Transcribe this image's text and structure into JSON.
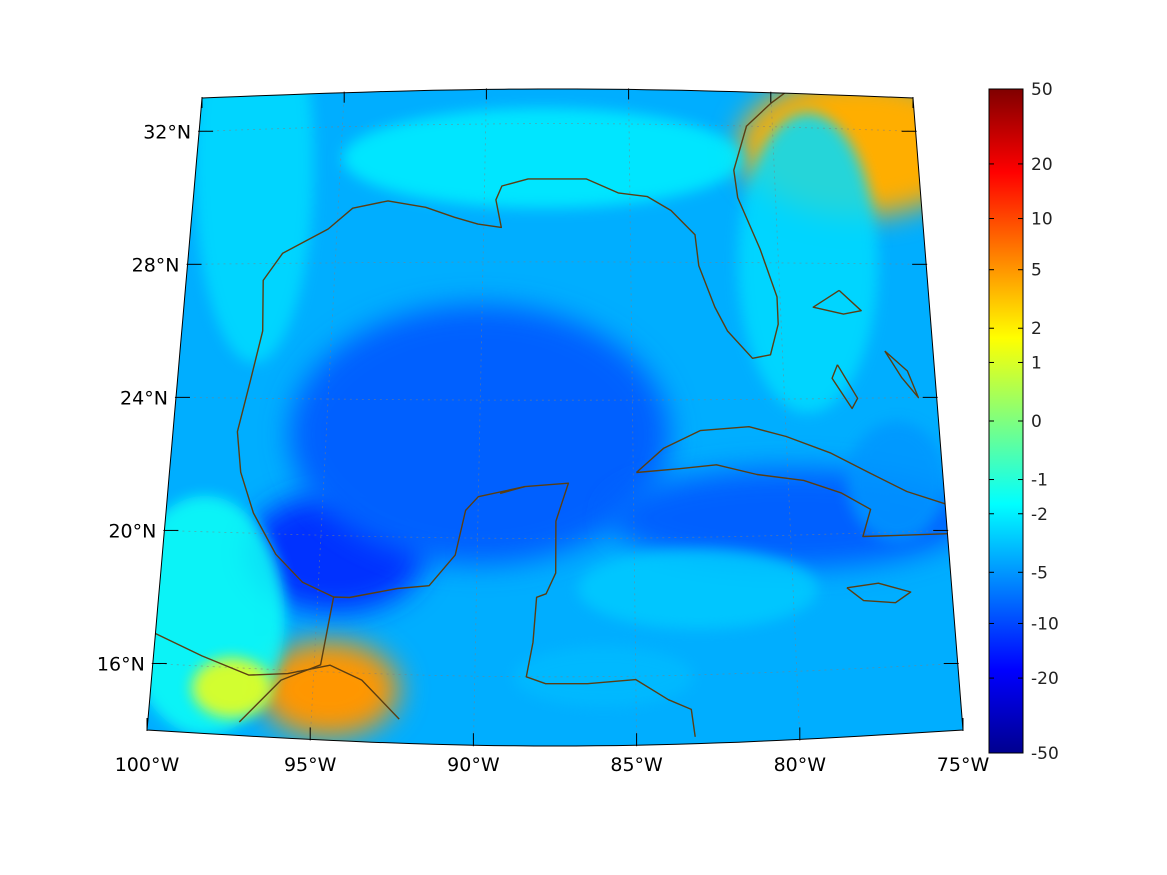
{
  "map": {
    "projection": "conic",
    "extent": {
      "lon": [
        -100,
        -75
      ],
      "lat": [
        14,
        33
      ]
    },
    "coastline_color": "#5a3e12",
    "grid_color": "#7f7f7f",
    "frame_color": "#000000",
    "latitude_labels": [
      {
        "lat": 32,
        "label": "32°N"
      },
      {
        "lat": 28,
        "label": "28°N"
      },
      {
        "lat": 24,
        "label": "24°N"
      },
      {
        "lat": 20,
        "label": "20°N"
      },
      {
        "lat": 16,
        "label": "16°N"
      }
    ],
    "longitude_labels": [
      {
        "lon": -100,
        "label": "100°W"
      },
      {
        "lon": -95,
        "label": "95°W"
      },
      {
        "lon": -90,
        "label": "90°W"
      },
      {
        "lon": -85,
        "label": "85°W"
      },
      {
        "lon": -80,
        "label": "80°W"
      },
      {
        "lon": -75,
        "label": "75°W"
      }
    ],
    "field_summary": {
      "background_level": -4,
      "features": [
        {
          "region": "southern Mexico",
          "lon": -94.5,
          "lat": 15.5,
          "value": 5
        },
        {
          "region": "southeastern US (Georgia/Carolina)",
          "lon": -77,
          "lat": 31.5,
          "value": 4
        },
        {
          "region": "southwest Gulf (Bay of Campeche)",
          "lon": -94.5,
          "lat": 19.5,
          "value": -12
        },
        {
          "region": "central Gulf",
          "lon": -90,
          "lat": 23,
          "value": -8
        },
        {
          "region": "Caribbean south of Cuba",
          "lon": -80,
          "lat": 20.5,
          "value": -8
        }
      ]
    }
  },
  "colorbar": {
    "scale": "symmetric-log",
    "range": [
      -50,
      50
    ],
    "colormap": "jet",
    "ticks": [
      50,
      20,
      10,
      5,
      2,
      1,
      0,
      -1,
      -2,
      -5,
      -10,
      -20,
      -50
    ],
    "tick_labels": [
      "50",
      "20",
      "10",
      "5",
      "2",
      "1",
      "0",
      "-1",
      "-2",
      "-5",
      "-10",
      "-20",
      "-50"
    ]
  }
}
